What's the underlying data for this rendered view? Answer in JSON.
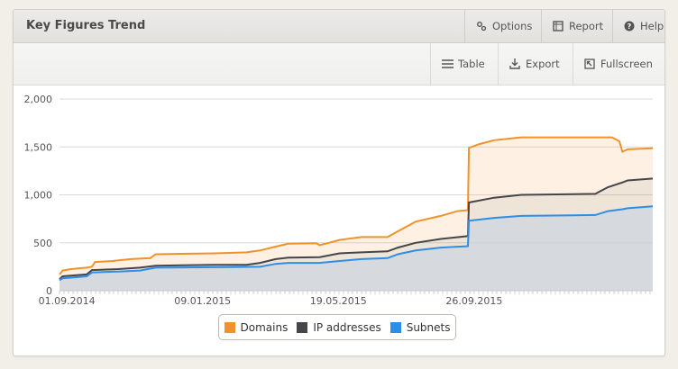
{
  "widget": {
    "title": "Key Figures Trend",
    "buttons": [
      {
        "label": "Options",
        "icon": "gear-icon"
      },
      {
        "label": "Report",
        "icon": "report-icon"
      },
      {
        "label": "Help",
        "icon": "help-icon"
      }
    ]
  },
  "toolbar": {
    "table_label": "Table",
    "export_label": "Export",
    "fullscreen_label": "Fullscreen"
  },
  "legend": {
    "domains": "Domains",
    "ip_addresses": "IP addresses",
    "subnets": "Subnets"
  },
  "colors": {
    "domains": "#f0922a",
    "ip_addresses": "#45454a",
    "subnets": "#2d8ee8"
  },
  "chart_data": {
    "type": "area",
    "ylim": [
      0,
      2000
    ],
    "y_ticks": [
      "0",
      "500",
      "1,000",
      "1,500",
      "2,000"
    ],
    "x_ticks": [
      "01.09.2014",
      "09.01.2015",
      "19.05.2015",
      "26.09.2015"
    ],
    "grid": true,
    "legend_placement": "bottom",
    "series": [
      {
        "name": "Domains",
        "points": [
          [
            "2014-08-25",
            170
          ],
          [
            "2014-08-28",
            210
          ],
          [
            "2014-09-05",
            225
          ],
          [
            "2014-09-20",
            240
          ],
          [
            "2014-09-25",
            250
          ],
          [
            "2014-09-28",
            300
          ],
          [
            "2014-10-15",
            310
          ],
          [
            "2014-11-01",
            330
          ],
          [
            "2014-11-20",
            340
          ],
          [
            "2014-11-25",
            380
          ],
          [
            "2014-12-20",
            385
          ],
          [
            "2015-01-20",
            390
          ],
          [
            "2015-02-20",
            400
          ],
          [
            "2015-03-05",
            420
          ],
          [
            "2015-03-20",
            460
          ],
          [
            "2015-04-01",
            490
          ],
          [
            "2015-04-28",
            495
          ],
          [
            "2015-05-01",
            475
          ],
          [
            "2015-05-10",
            500
          ],
          [
            "2015-05-20",
            530
          ],
          [
            "2015-06-10",
            560
          ],
          [
            "2015-07-05",
            560
          ],
          [
            "2015-07-15",
            620
          ],
          [
            "2015-08-01",
            720
          ],
          [
            "2015-08-25",
            780
          ],
          [
            "2015-09-10",
            830
          ],
          [
            "2015-09-20",
            840
          ],
          [
            "2015-09-21",
            1490
          ],
          [
            "2015-10-01",
            1530
          ],
          [
            "2015-10-15",
            1570
          ],
          [
            "2015-11-10",
            1600
          ],
          [
            "2016-02-05",
            1600
          ],
          [
            "2016-02-12",
            1560
          ],
          [
            "2016-02-15",
            1450
          ],
          [
            "2016-02-20",
            1475
          ],
          [
            "2016-03-15",
            1485
          ]
        ]
      },
      {
        "name": "IP addresses",
        "points": [
          [
            "2014-08-25",
            120
          ],
          [
            "2014-08-28",
            150
          ],
          [
            "2014-09-20",
            170
          ],
          [
            "2014-09-25",
            215
          ],
          [
            "2014-10-20",
            225
          ],
          [
            "2014-11-10",
            240
          ],
          [
            "2014-11-25",
            260
          ],
          [
            "2014-12-20",
            265
          ],
          [
            "2015-01-20",
            270
          ],
          [
            "2015-02-20",
            270
          ],
          [
            "2015-03-05",
            290
          ],
          [
            "2015-03-20",
            330
          ],
          [
            "2015-04-01",
            345
          ],
          [
            "2015-05-01",
            350
          ],
          [
            "2015-05-20",
            390
          ],
          [
            "2015-06-10",
            400
          ],
          [
            "2015-07-05",
            410
          ],
          [
            "2015-07-15",
            450
          ],
          [
            "2015-08-01",
            500
          ],
          [
            "2015-08-25",
            540
          ],
          [
            "2015-09-20",
            570
          ],
          [
            "2015-09-21",
            920
          ],
          [
            "2015-10-15",
            970
          ],
          [
            "2015-11-10",
            1000
          ],
          [
            "2016-01-20",
            1010
          ],
          [
            "2016-02-01",
            1080
          ],
          [
            "2016-02-15",
            1130
          ],
          [
            "2016-02-20",
            1150
          ],
          [
            "2016-03-15",
            1170
          ]
        ]
      },
      {
        "name": "Subnets",
        "points": [
          [
            "2014-08-25",
            110
          ],
          [
            "2014-08-28",
            130
          ],
          [
            "2014-09-20",
            150
          ],
          [
            "2014-09-25",
            190
          ],
          [
            "2014-10-20",
            200
          ],
          [
            "2014-11-10",
            210
          ],
          [
            "2014-11-25",
            240
          ],
          [
            "2015-03-05",
            250
          ],
          [
            "2015-03-20",
            280
          ],
          [
            "2015-04-01",
            290
          ],
          [
            "2015-05-01",
            290
          ],
          [
            "2015-05-20",
            310
          ],
          [
            "2015-06-10",
            330
          ],
          [
            "2015-07-05",
            340
          ],
          [
            "2015-07-15",
            380
          ],
          [
            "2015-08-01",
            420
          ],
          [
            "2015-08-25",
            450
          ],
          [
            "2015-09-20",
            465
          ],
          [
            "2015-09-21",
            730
          ],
          [
            "2015-10-15",
            760
          ],
          [
            "2015-11-10",
            780
          ],
          [
            "2016-01-20",
            790
          ],
          [
            "2016-02-01",
            830
          ],
          [
            "2016-02-15",
            850
          ],
          [
            "2016-02-20",
            860
          ],
          [
            "2016-03-15",
            880
          ]
        ]
      }
    ]
  }
}
